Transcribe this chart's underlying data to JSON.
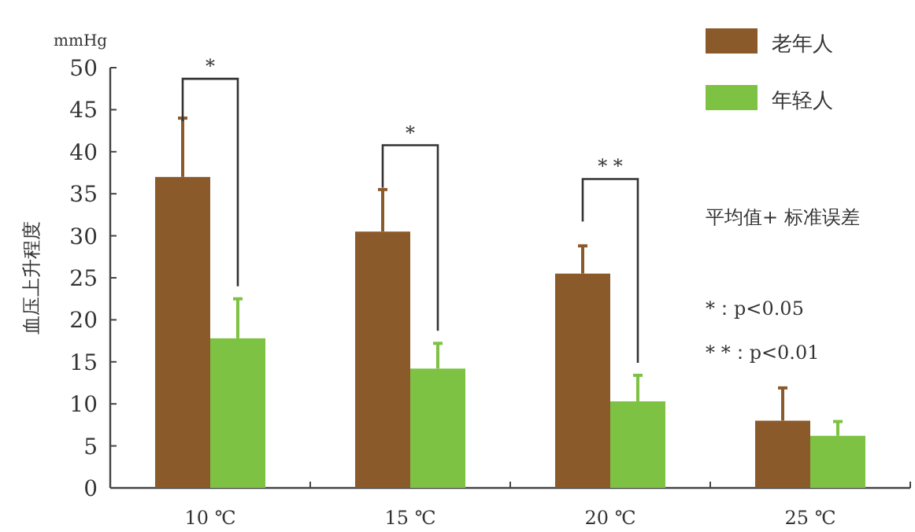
{
  "chart_data": {
    "type": "bar",
    "ylabel": "血压上升程度",
    "categories": [
      "10 ℃",
      "15 ℃",
      "20 ℃",
      "25 ℃"
    ],
    "series": [
      {
        "name": "老年人",
        "color": "#8b5a2b",
        "values": [
          37,
          30.5,
          25.5,
          8
        ],
        "errors": [
          [
            37,
            44
          ],
          [
            30.5,
            35.5
          ],
          [
            25.5,
            28.8
          ],
          [
            8,
            11.9
          ]
        ]
      },
      {
        "name": "年轻人",
        "color": "#7dc242",
        "values": [
          17.8,
          14.2,
          10.3,
          6.2
        ],
        "errors": [
          [
            17.8,
            22.5
          ],
          [
            14.2,
            17.2
          ],
          [
            10.3,
            13.4
          ],
          [
            6.2,
            7.9
          ]
        ]
      }
    ],
    "ylim": [
      0,
      50
    ],
    "yticks": [
      0,
      5,
      10,
      15,
      20,
      25,
      30,
      35,
      40,
      45,
      50
    ],
    "legend": "top right",
    "annotations": [
      "mmHg",
      "*",
      "*",
      "* *",
      "平均值+ 标准误差",
      "*：p<0.05",
      "* *：p<0.01"
    ]
  }
}
